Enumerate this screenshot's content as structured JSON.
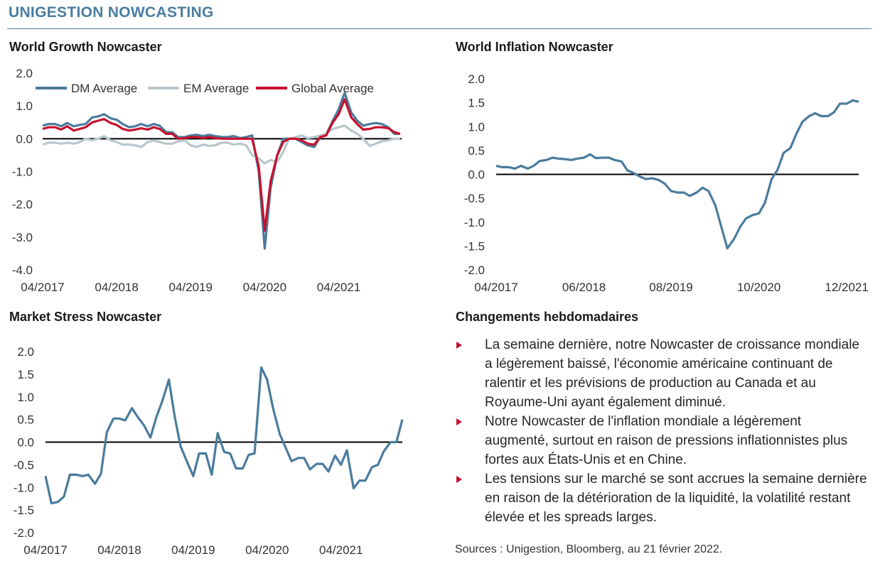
{
  "header": {
    "title": "UNIGESTION NOWCASTING"
  },
  "charts": {
    "growth": {
      "title": "World Growth Nowcaster"
    },
    "inflation": {
      "title": "World Inflation Nowcaster"
    },
    "stress": {
      "title": "Market Stress Nowcaster"
    }
  },
  "weekly": {
    "title": "Changements hebdomadaires",
    "bullets": [
      "La semaine dernière, notre Nowcaster de croissance mondiale a légèrement baissé, l'économie américaine continuant de ralentir et les prévisions de production au Canada et au Royaume-Uni ayant également diminué.",
      "Notre Nowcaster de l'inflation mondiale a légèrement augmenté, surtout en raison de pressions inflationnistes plus fortes aux États-Unis et en Chine.",
      "Les tensions sur le marché se sont accrues la semaine dernière en raison de la détérioration de la liquidité, la volatilité restant élevée et les spreads larges."
    ],
    "bullet_color": "#c8102e"
  },
  "sources": "Sources : Unigestion, Bloomberg, au 21 février 2022.",
  "colors": {
    "accent": "#4a7da0",
    "dm": "#4a7b9d",
    "em": "#b9c6cc",
    "global": "#c8102e",
    "zero_line": "#000000"
  },
  "chart_data": [
    {
      "id": "growth",
      "type": "line",
      "title": "World Growth Nowcaster",
      "ylim": [
        -4.0,
        2.0
      ],
      "yticks": [
        2.0,
        1.0,
        0.0,
        -1.0,
        -2.0,
        -3.0,
        -4.0
      ],
      "ytick_labels": [
        "2.0",
        "1.0",
        "0.0",
        "-1.0",
        "-2.0",
        "-3.0",
        "-4.0"
      ],
      "xlim": [
        2017.25,
        2022.1
      ],
      "xticks": [
        2017.25,
        2018.25,
        2019.25,
        2020.25,
        2021.25
      ],
      "xtick_labels": [
        "04/2017",
        "04/2018",
        "04/2019",
        "04/2020",
        "04/2021"
      ],
      "legend": "top",
      "series": [
        {
          "name": "DM Average",
          "x": [
            2017.25,
            2017.33,
            2017.42,
            2017.5,
            2017.58,
            2017.67,
            2017.75,
            2017.83,
            2017.92,
            2018.0,
            2018.08,
            2018.17,
            2018.25,
            2018.33,
            2018.42,
            2018.5,
            2018.58,
            2018.67,
            2018.75,
            2018.83,
            2018.92,
            2019.0,
            2019.08,
            2019.17,
            2019.25,
            2019.33,
            2019.42,
            2019.5,
            2019.58,
            2019.67,
            2019.75,
            2019.83,
            2019.92,
            2020.0,
            2020.08,
            2020.17,
            2020.25,
            2020.33,
            2020.42,
            2020.5,
            2020.58,
            2020.67,
            2020.75,
            2020.83,
            2020.92,
            2021.0,
            2021.08,
            2021.17,
            2021.25,
            2021.33,
            2021.42,
            2021.5,
            2021.58,
            2021.67,
            2021.75,
            2021.83,
            2021.92,
            2022.0,
            2022.08
          ],
          "values": [
            0.4,
            0.45,
            0.45,
            0.38,
            0.48,
            0.38,
            0.42,
            0.45,
            0.65,
            0.68,
            0.75,
            0.62,
            0.58,
            0.45,
            0.35,
            0.38,
            0.45,
            0.38,
            0.45,
            0.4,
            0.2,
            0.2,
            0.05,
            0.05,
            0.1,
            0.12,
            0.08,
            0.12,
            0.08,
            0.05,
            0.05,
            0.08,
            0.02,
            0.05,
            0.1,
            -1.0,
            -3.35,
            -1.5,
            -0.5,
            0.0,
            0.0,
            0.0,
            -0.1,
            -0.2,
            -0.25,
            0.05,
            0.12,
            0.55,
            0.9,
            1.4,
            0.8,
            0.55,
            0.4,
            0.45,
            0.48,
            0.45,
            0.35,
            0.15,
            0.15
          ]
        },
        {
          "name": "EM Average",
          "x": [
            2017.25,
            2017.33,
            2017.42,
            2017.5,
            2017.58,
            2017.67,
            2017.75,
            2017.83,
            2017.92,
            2018.0,
            2018.08,
            2018.17,
            2018.25,
            2018.33,
            2018.42,
            2018.5,
            2018.58,
            2018.67,
            2018.75,
            2018.83,
            2018.92,
            2019.0,
            2019.08,
            2019.17,
            2019.25,
            2019.33,
            2019.42,
            2019.5,
            2019.58,
            2019.67,
            2019.75,
            2019.83,
            2019.92,
            2020.0,
            2020.08,
            2020.17,
            2020.25,
            2020.33,
            2020.42,
            2020.5,
            2020.58,
            2020.67,
            2020.75,
            2020.83,
            2020.92,
            2021.0,
            2021.08,
            2021.17,
            2021.25,
            2021.33,
            2021.42,
            2021.5,
            2021.58,
            2021.67,
            2021.75,
            2021.83,
            2021.92,
            2022.0,
            2022.08
          ],
          "values": [
            -0.18,
            -0.12,
            -0.12,
            -0.15,
            -0.12,
            -0.15,
            -0.1,
            0.0,
            -0.05,
            0.0,
            0.08,
            -0.05,
            -0.1,
            -0.18,
            -0.18,
            -0.2,
            -0.25,
            -0.1,
            -0.05,
            -0.1,
            -0.15,
            -0.15,
            -0.08,
            -0.05,
            -0.2,
            -0.25,
            -0.18,
            -0.22,
            -0.2,
            -0.12,
            -0.12,
            -0.18,
            -0.15,
            -0.2,
            -0.5,
            -0.6,
            -0.75,
            -0.65,
            -0.7,
            -0.4,
            0.0,
            0.05,
            0.1,
            0.02,
            0.05,
            0.1,
            0.15,
            0.3,
            0.35,
            0.4,
            0.25,
            0.15,
            0.0,
            -0.22,
            -0.15,
            -0.08,
            -0.05,
            0.0,
            0.0
          ]
        },
        {
          "name": "Global Average",
          "x": [
            2017.25,
            2017.33,
            2017.42,
            2017.5,
            2017.58,
            2017.67,
            2017.75,
            2017.83,
            2017.92,
            2018.0,
            2018.08,
            2018.17,
            2018.25,
            2018.33,
            2018.42,
            2018.5,
            2018.58,
            2018.67,
            2018.75,
            2018.83,
            2018.92,
            2019.0,
            2019.08,
            2019.17,
            2019.25,
            2019.33,
            2019.42,
            2019.5,
            2019.58,
            2019.67,
            2019.75,
            2019.83,
            2019.92,
            2020.0,
            2020.08,
            2020.17,
            2020.25,
            2020.33,
            2020.42,
            2020.5,
            2020.58,
            2020.67,
            2020.75,
            2020.83,
            2020.92,
            2021.0,
            2021.08,
            2021.17,
            2021.25,
            2021.33,
            2021.42,
            2021.5,
            2021.58,
            2021.67,
            2021.75,
            2021.83,
            2021.92,
            2022.0,
            2022.08
          ],
          "values": [
            0.3,
            0.35,
            0.35,
            0.28,
            0.38,
            0.25,
            0.3,
            0.35,
            0.5,
            0.55,
            0.6,
            0.48,
            0.42,
            0.3,
            0.25,
            0.28,
            0.32,
            0.28,
            0.35,
            0.3,
            0.15,
            0.15,
            0.0,
            0.02,
            0.05,
            0.05,
            0.02,
            0.05,
            0.02,
            0.0,
            0.0,
            0.0,
            0.0,
            0.0,
            0.0,
            -0.85,
            -2.8,
            -1.3,
            -0.5,
            -0.1,
            0.0,
            0.0,
            -0.05,
            -0.15,
            -0.18,
            0.05,
            0.1,
            0.5,
            0.75,
            1.2,
            0.65,
            0.45,
            0.28,
            0.3,
            0.35,
            0.35,
            0.32,
            0.2,
            0.15
          ]
        }
      ]
    },
    {
      "id": "inflation",
      "type": "line",
      "title": "World Inflation Nowcaster",
      "ylim": [
        -2.0,
        2.0
      ],
      "yticks": [
        2.0,
        1.5,
        1.0,
        0.5,
        0.0,
        -0.5,
        -1.0,
        -1.5,
        -2.0
      ],
      "ytick_labels": [
        "2.0",
        "1.5",
        "1.0",
        "0.5",
        "0.0",
        "-0.5",
        "-1.0",
        "-1.5",
        "-2.0"
      ],
      "xlim": [
        2017.25,
        2022.08
      ],
      "xticks": [
        2017.25,
        2018.42,
        2019.58,
        2020.75,
        2021.92
      ],
      "xtick_labels": [
        "04/2017",
        "06/2018",
        "08/2019",
        "10/2020",
        "12/2021"
      ],
      "series": [
        {
          "x": [
            2017.25,
            2017.33,
            2017.42,
            2017.5,
            2017.58,
            2017.67,
            2017.75,
            2017.83,
            2017.92,
            2018.0,
            2018.08,
            2018.17,
            2018.25,
            2018.33,
            2018.42,
            2018.5,
            2018.58,
            2018.67,
            2018.75,
            2018.83,
            2018.92,
            2019.0,
            2019.08,
            2019.17,
            2019.25,
            2019.33,
            2019.42,
            2019.5,
            2019.58,
            2019.67,
            2019.75,
            2019.83,
            2019.92,
            2020.0,
            2020.08,
            2020.17,
            2020.25,
            2020.33,
            2020.42,
            2020.5,
            2020.58,
            2020.67,
            2020.75,
            2020.83,
            2020.92,
            2021.0,
            2021.08,
            2021.17,
            2021.25,
            2021.33,
            2021.42,
            2021.5,
            2021.58,
            2021.67,
            2021.75,
            2021.83,
            2021.92,
            2022.0,
            2022.08
          ],
          "values": [
            0.18,
            0.15,
            0.15,
            0.12,
            0.18,
            0.12,
            0.18,
            0.28,
            0.3,
            0.35,
            0.33,
            0.32,
            0.3,
            0.33,
            0.35,
            0.42,
            0.34,
            0.35,
            0.35,
            0.3,
            0.27,
            0.08,
            0.03,
            -0.05,
            -0.1,
            -0.08,
            -0.12,
            -0.2,
            -0.35,
            -0.38,
            -0.38,
            -0.45,
            -0.38,
            -0.28,
            -0.35,
            -0.65,
            -1.1,
            -1.55,
            -1.35,
            -1.1,
            -0.92,
            -0.85,
            -0.82,
            -0.6,
            -0.1,
            0.1,
            0.45,
            0.55,
            0.85,
            1.1,
            1.22,
            1.28,
            1.22,
            1.22,
            1.3,
            1.48,
            1.48,
            1.55,
            1.52
          ]
        }
      ]
    },
    {
      "id": "stress",
      "type": "line",
      "title": "Market Stress Nowcaster",
      "ylim": [
        -2.0,
        2.0
      ],
      "yticks": [
        2.0,
        1.5,
        1.0,
        0.5,
        0.0,
        -0.5,
        -1.0,
        -1.5,
        -2.0
      ],
      "ytick_labels": [
        "2.0",
        "1.5",
        "1.0",
        "0.5",
        "0.0",
        "-0.5",
        "-1.0",
        "-1.5",
        "-2.0"
      ],
      "xlim": [
        2017.25,
        2022.08
      ],
      "xticks": [
        2017.25,
        2018.25,
        2019.25,
        2020.25,
        2021.25
      ],
      "xtick_labels": [
        "04/2017",
        "04/2018",
        "04/2019",
        "04/2020",
        "04/2021"
      ],
      "series": [
        {
          "x": [
            2017.25,
            2017.33,
            2017.42,
            2017.5,
            2017.58,
            2017.67,
            2017.75,
            2017.83,
            2017.92,
            2018.0,
            2018.08,
            2018.17,
            2018.25,
            2018.33,
            2018.42,
            2018.5,
            2018.58,
            2018.67,
            2018.75,
            2018.83,
            2018.92,
            2019.0,
            2019.08,
            2019.17,
            2019.25,
            2019.33,
            2019.42,
            2019.5,
            2019.58,
            2019.67,
            2019.75,
            2019.83,
            2019.92,
            2020.0,
            2020.08,
            2020.17,
            2020.25,
            2020.33,
            2020.42,
            2020.5,
            2020.58,
            2020.67,
            2020.75,
            2020.83,
            2020.92,
            2021.0,
            2021.08,
            2021.17,
            2021.25,
            2021.33,
            2021.42,
            2021.5,
            2021.58,
            2021.67,
            2021.75,
            2021.83,
            2021.92,
            2022.0,
            2022.08
          ],
          "values": [
            -0.75,
            -1.35,
            -1.32,
            -1.2,
            -0.72,
            -0.72,
            -0.75,
            -0.72,
            -0.92,
            -0.7,
            0.22,
            0.52,
            0.52,
            0.48,
            0.75,
            0.55,
            0.38,
            0.1,
            0.55,
            0.9,
            1.38,
            0.55,
            -0.1,
            -0.45,
            -0.75,
            -0.25,
            -0.25,
            -0.72,
            0.2,
            -0.22,
            -0.25,
            -0.58,
            -0.58,
            -0.28,
            -0.25,
            1.65,
            1.38,
            0.75,
            0.18,
            -0.12,
            -0.42,
            -0.35,
            -0.35,
            -0.6,
            -0.48,
            -0.48,
            -0.65,
            -0.3,
            -0.5,
            -0.18,
            -1.02,
            -0.85,
            -0.85,
            -0.55,
            -0.5,
            -0.2,
            0.0,
            0.0,
            0.5
          ]
        }
      ]
    }
  ]
}
